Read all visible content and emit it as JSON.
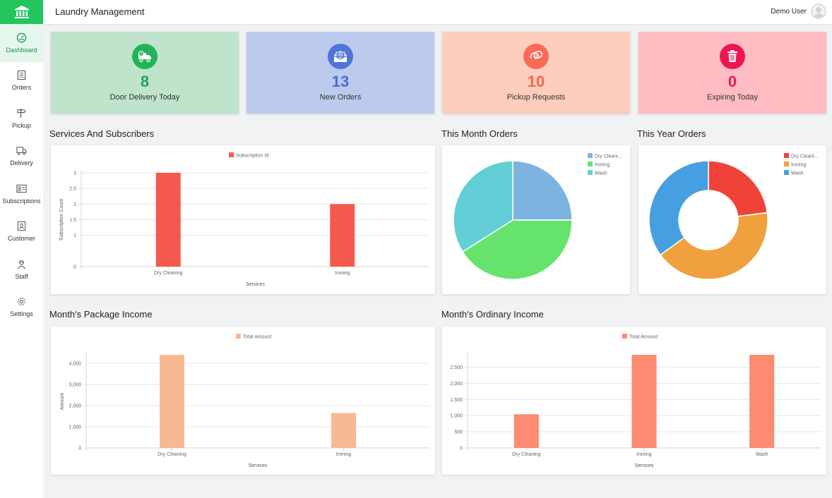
{
  "header": {
    "title": "Laundry Management",
    "user": "Demo User"
  },
  "sidebar": {
    "items": [
      {
        "label": "Dashboard",
        "icon": "dashboard-icon"
      },
      {
        "label": "Orders",
        "icon": "orders-icon"
      },
      {
        "label": "Pickup",
        "icon": "pickup-icon"
      },
      {
        "label": "Delivery",
        "icon": "delivery-icon"
      },
      {
        "label": "Subscriptions",
        "icon": "subscriptions-icon"
      },
      {
        "label": "Customer",
        "icon": "customer-icon"
      },
      {
        "label": "Staff",
        "icon": "staff-icon"
      },
      {
        "label": "Settings",
        "icon": "settings-icon"
      }
    ]
  },
  "stats": [
    {
      "value": "8",
      "label": "Door Delivery Today",
      "icon": "delivery-truck-icon",
      "bg": "#bfe3cb",
      "accent": "#21b45a"
    },
    {
      "value": "13",
      "label": "New Orders",
      "icon": "mail-icon",
      "bg": "#bccaed",
      "accent": "#4d74d6"
    },
    {
      "value": "10",
      "label": "Pickup Requests",
      "icon": "pickup-request-icon",
      "bg": "#fdcdbd",
      "accent": "#fa6a55"
    },
    {
      "value": "0",
      "label": "Expiring Today",
      "icon": "trash-icon",
      "bg": "#ffbcc2",
      "accent": "#ef1454"
    }
  ],
  "sections": {
    "services": "Services And Subscribers",
    "month_orders": "This Month Orders",
    "year_orders": "This Year Orders",
    "package_income": "Month's Package Income",
    "ordinary_income": "Month's Ordinary Income"
  },
  "chart_data": [
    {
      "type": "bar",
      "legend": "Subscription Id",
      "color": "#f55a4e",
      "categories": [
        "Dry Cleaning",
        "Ironing"
      ],
      "values": [
        3,
        2
      ],
      "xlabel": "Services",
      "ylabel": "Subscription Count",
      "ylim": [
        0,
        3
      ],
      "yticks": [
        "0",
        "1",
        "1.5",
        "2",
        "2.5",
        "3"
      ],
      "ytickvals": [
        0,
        1,
        1.5,
        2,
        2.5,
        3
      ]
    },
    {
      "type": "pie",
      "legend": [
        "Dry Cleani...",
        "Ironing",
        "Wash"
      ],
      "colors": [
        "#7cb3e0",
        "#66e36c",
        "#62cfd7"
      ],
      "values": [
        25,
        41,
        34
      ]
    },
    {
      "type": "pie",
      "donut": true,
      "legend": [
        "Dry Cleani...",
        "Ironing",
        "Wash"
      ],
      "colors": [
        "#ef4339",
        "#f0a03d",
        "#469fe0"
      ],
      "values": [
        23,
        42,
        35
      ]
    },
    {
      "type": "bar",
      "legend": "Total Amount",
      "color": "#f6b994",
      "categories": [
        "Dry Cleaning",
        "Ironing"
      ],
      "values": [
        4400,
        1650
      ],
      "xlabel": "Services",
      "ylabel": "Amount",
      "ylim": [
        0,
        4400
      ],
      "yticks": [
        "0",
        "1,000",
        "2,000",
        "3,000",
        "4,000"
      ],
      "ytickvals": [
        0,
        1000,
        2000,
        3000,
        4000
      ]
    },
    {
      "type": "bar",
      "legend": "Total Amount",
      "color": "#fc8b71",
      "categories": [
        "Dry Cleaning",
        "Ironing",
        "Wash"
      ],
      "values": [
        1040,
        2880,
        2880
      ],
      "xlabel": "Services",
      "ylabel": "",
      "ylim": [
        0,
        2880
      ],
      "yticks": [
        "0",
        "500",
        "1,000",
        "1,500",
        "2,000",
        "2,500"
      ],
      "ytickvals": [
        0,
        500,
        1000,
        1500,
        2000,
        2500
      ]
    }
  ]
}
